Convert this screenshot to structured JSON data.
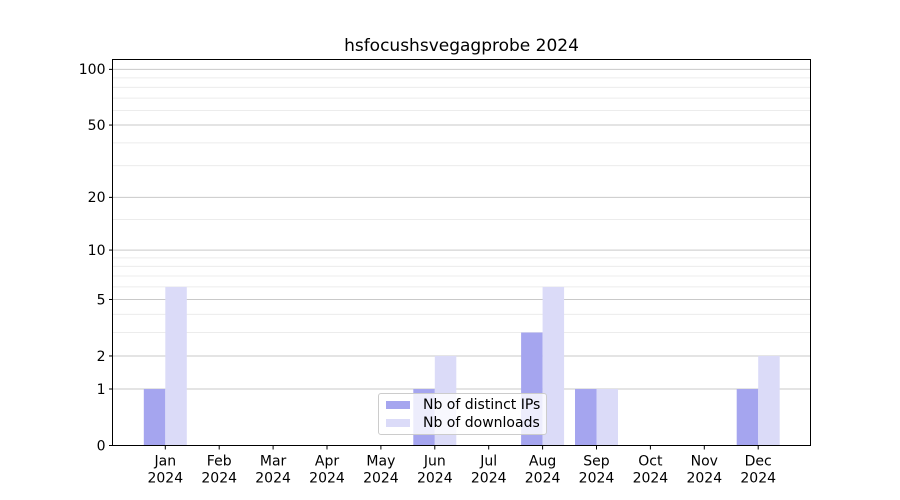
{
  "chart_data": {
    "type": "bar",
    "title": "hsfocushsvegagprobe 2024",
    "scale": "log1p",
    "categories": [
      "Jan",
      "Feb",
      "Mar",
      "Apr",
      "May",
      "Jun",
      "Jul",
      "Aug",
      "Sep",
      "Oct",
      "Nov",
      "Dec"
    ],
    "x_tick_year": "2024",
    "series": [
      {
        "name": "Nb of distinct IPs",
        "color": "#a5a5ef",
        "values": [
          1,
          0,
          0,
          0,
          0,
          1,
          0,
          3,
          1,
          0,
          0,
          1
        ]
      },
      {
        "name": "Nb of downloads",
        "color": "#dbdbf8",
        "values": [
          6,
          0,
          0,
          0,
          0,
          2,
          0,
          6,
          1,
          0,
          0,
          2
        ]
      }
    ],
    "yticks": [
      0,
      1,
      2,
      5,
      10,
      20,
      50,
      100
    ],
    "minor_gridlines": [
      3,
      4,
      6,
      7,
      8,
      9,
      15,
      30,
      40,
      60,
      70,
      80,
      90
    ],
    "ylim": [
      0,
      113
    ],
    "grid": "on",
    "legend_position": "lower center",
    "colors": {
      "major_grid": "#c9c9c9",
      "minor_grid": "#ececec",
      "axis": "#000000",
      "text": "#000000",
      "background": "#ffffff"
    }
  }
}
